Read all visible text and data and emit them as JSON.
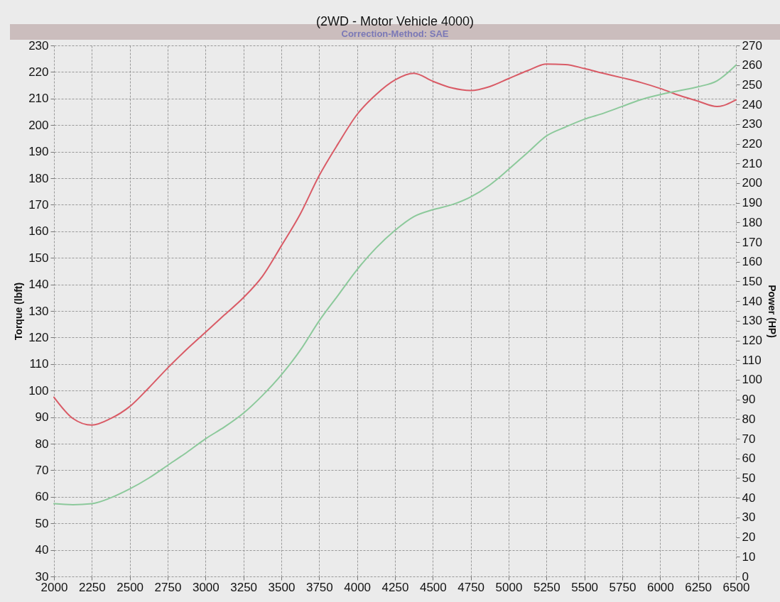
{
  "chart_data": {
    "type": "line",
    "title": "(2WD - Motor Vehicle 4000)",
    "subtitle": "Correction-Method: SAE",
    "ylabel": "Torque (lbft)",
    "y2label": "Power (HP)",
    "x": [
      2000,
      2125,
      2250,
      2375,
      2500,
      2625,
      2750,
      2875,
      3000,
      3125,
      3250,
      3375,
      3500,
      3625,
      3750,
      3875,
      4000,
      4125,
      4250,
      4375,
      4500,
      4625,
      4750,
      4875,
      5000,
      5125,
      5250,
      5375,
      5500,
      5625,
      5750,
      5875,
      6000,
      6125,
      6250,
      6375,
      6500
    ],
    "series": [
      {
        "color": "#d95b66",
        "values": [
          97.5,
          89.5,
          87,
          89.5,
          94,
          101,
          108.5,
          115.5,
          122,
          128.5,
          135,
          143,
          154.5,
          166.5,
          181,
          193,
          204,
          211.5,
          217,
          219.5,
          216.5,
          214,
          213,
          214.5,
          217.5,
          220.5,
          223,
          222.8,
          221.3,
          219.5,
          217.8,
          216,
          213.8,
          211.2,
          209,
          207,
          209.5
        ]
      },
      {
        "color": "#8cc99b",
        "axis": "y2",
        "values": [
          37,
          36.5,
          37,
          40,
          44.5,
          50,
          56.5,
          63,
          70,
          76,
          83,
          92,
          102.5,
          115,
          130,
          143,
          156,
          167,
          176,
          183,
          186.5,
          189,
          193,
          199,
          207,
          215.5,
          224,
          228.5,
          232.5,
          235.5,
          239,
          242.5,
          245,
          247,
          249,
          252,
          260
        ]
      }
    ],
    "xlim": [
      2000,
      6500
    ],
    "xticks": [
      2000,
      2250,
      2500,
      2750,
      3000,
      3250,
      3500,
      3750,
      4000,
      4250,
      4500,
      4750,
      5000,
      5250,
      5500,
      5750,
      6000,
      6250,
      6500
    ],
    "ylim": [
      30,
      230
    ],
    "yticks": [
      30,
      40,
      50,
      60,
      70,
      80,
      90,
      100,
      110,
      120,
      130,
      140,
      150,
      160,
      170,
      180,
      190,
      200,
      210,
      220,
      230
    ],
    "y2lim": [
      0,
      270
    ],
    "y2ticks": [
      0,
      10,
      20,
      30,
      40,
      50,
      60,
      70,
      80,
      90,
      100,
      110,
      120,
      130,
      140,
      150,
      160,
      170,
      180,
      190,
      200,
      210,
      220,
      230,
      240,
      250,
      260,
      270
    ],
    "grid": true
  }
}
